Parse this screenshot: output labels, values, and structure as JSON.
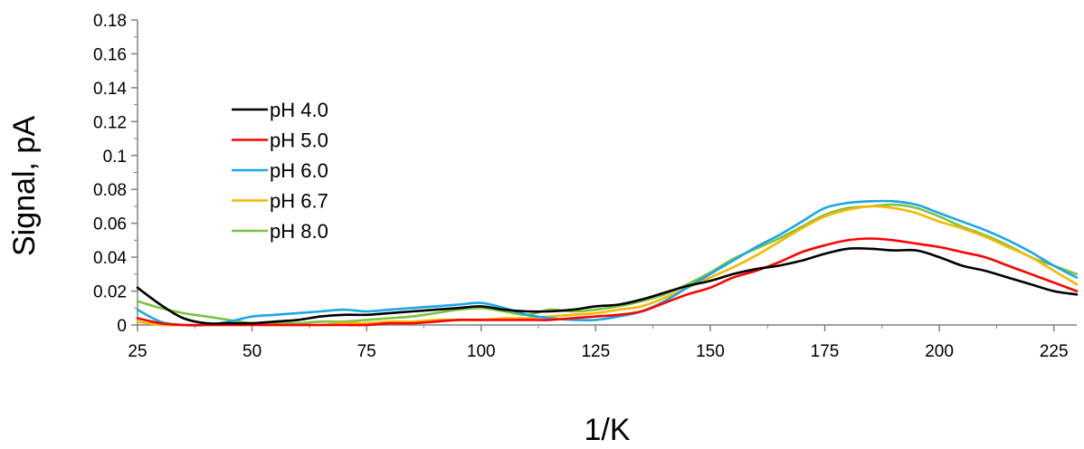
{
  "chart_data": {
    "type": "line",
    "title": "",
    "xlabel": "1/K",
    "ylabel": "Signal, pA",
    "xlim": [
      25,
      230
    ],
    "ylim": [
      0,
      0.18
    ],
    "x_ticks": [
      25,
      50,
      75,
      100,
      125,
      150,
      175,
      200,
      225
    ],
    "x_tick_labels": [
      "25",
      "50",
      "75",
      "100",
      "125",
      "150",
      "175",
      "200",
      "225"
    ],
    "y_ticks": [
      0,
      0.02,
      0.04,
      0.06,
      0.08,
      0.1,
      0.12,
      0.14,
      0.16,
      0.18
    ],
    "y_tick_labels": [
      "0",
      "0.02",
      "0.04",
      "0.06",
      "0.08",
      "0.1",
      "0.12",
      "0.14",
      "0.16",
      "0.18"
    ],
    "grid": false,
    "legend_position": "upper-left",
    "x": [
      25,
      30,
      35,
      40,
      45,
      50,
      55,
      60,
      65,
      70,
      75,
      80,
      85,
      90,
      95,
      100,
      105,
      110,
      115,
      120,
      125,
      130,
      135,
      140,
      145,
      150,
      155,
      160,
      165,
      170,
      175,
      180,
      185,
      190,
      195,
      200,
      205,
      210,
      215,
      220,
      225,
      230
    ],
    "series": [
      {
        "name": "pH 4.0",
        "color": "#000000",
        "values": [
          0.022,
          0.012,
          0.004,
          0.001,
          0.001,
          0.001,
          0.002,
          0.003,
          0.005,
          0.006,
          0.006,
          0.007,
          0.008,
          0.009,
          0.01,
          0.011,
          0.009,
          0.008,
          0.008,
          0.009,
          0.011,
          0.012,
          0.015,
          0.019,
          0.023,
          0.026,
          0.03,
          0.033,
          0.035,
          0.038,
          0.042,
          0.045,
          0.045,
          0.044,
          0.044,
          0.04,
          0.035,
          0.032,
          0.028,
          0.024,
          0.02,
          0.018
        ]
      },
      {
        "name": "pH 5.0",
        "color": "#ff0000",
        "values": [
          0.004,
          0.001,
          0.0,
          0.0,
          0.0,
          0.0,
          0.0,
          0.0,
          0.0,
          0.0,
          0.0,
          0.001,
          0.001,
          0.002,
          0.003,
          0.003,
          0.003,
          0.003,
          0.003,
          0.004,
          0.005,
          0.006,
          0.008,
          0.013,
          0.018,
          0.022,
          0.028,
          0.032,
          0.037,
          0.043,
          0.047,
          0.05,
          0.051,
          0.05,
          0.048,
          0.046,
          0.043,
          0.04,
          0.035,
          0.03,
          0.025,
          0.02
        ]
      },
      {
        "name": "pH 6.0",
        "color": "#1aa7e6",
        "values": [
          0.009,
          0.002,
          0.0,
          0.0,
          0.002,
          0.005,
          0.006,
          0.007,
          0.008,
          0.009,
          0.008,
          0.009,
          0.01,
          0.011,
          0.012,
          0.013,
          0.01,
          0.006,
          0.004,
          0.003,
          0.003,
          0.005,
          0.008,
          0.014,
          0.022,
          0.03,
          0.038,
          0.046,
          0.053,
          0.061,
          0.069,
          0.072,
          0.073,
          0.073,
          0.071,
          0.066,
          0.061,
          0.056,
          0.05,
          0.043,
          0.035,
          0.028
        ]
      },
      {
        "name": "pH 6.7",
        "color": "#f5b800",
        "values": [
          0.002,
          0.0,
          0.0,
          0.0,
          0.0,
          0.0,
          0.0,
          0.0,
          0.0,
          0.001,
          0.001,
          0.002,
          0.002,
          0.003,
          0.003,
          0.003,
          0.004,
          0.004,
          0.005,
          0.006,
          0.007,
          0.009,
          0.011,
          0.016,
          0.022,
          0.028,
          0.034,
          0.041,
          0.049,
          0.057,
          0.064,
          0.068,
          0.07,
          0.069,
          0.066,
          0.061,
          0.057,
          0.052,
          0.046,
          0.04,
          0.032,
          0.024
        ]
      },
      {
        "name": "pH 8.0",
        "color": "#7cc242",
        "values": [
          0.014,
          0.01,
          0.007,
          0.005,
          0.003,
          0.001,
          0.001,
          0.001,
          0.002,
          0.002,
          0.003,
          0.004,
          0.005,
          0.007,
          0.009,
          0.01,
          0.008,
          0.006,
          0.009,
          0.008,
          0.009,
          0.011,
          0.014,
          0.018,
          0.024,
          0.031,
          0.039,
          0.045,
          0.051,
          0.058,
          0.065,
          0.069,
          0.07,
          0.071,
          0.069,
          0.064,
          0.058,
          0.053,
          0.047,
          0.04,
          0.035,
          0.03
        ]
      }
    ]
  }
}
